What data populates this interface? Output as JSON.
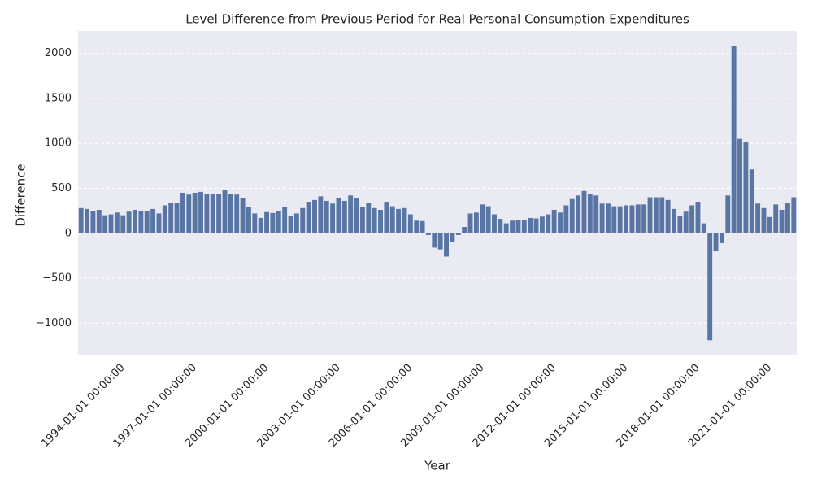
{
  "chart_data": {
    "type": "bar",
    "title": "Level Difference from Previous Period for Real Personal Consumption Expenditures",
    "x_label": "Year",
    "y_label": "Difference",
    "color": "#5875a4",
    "grid": true,
    "ylim": [
      -1350,
      2250
    ],
    "yticks": [
      {
        "value": -1000,
        "label": "−1000"
      },
      {
        "value": -500,
        "label": "−500"
      },
      0,
      500,
      1000,
      1500,
      2000
    ],
    "categories": [
      null,
      null,
      null,
      null,
      null,
      null,
      null,
      "1994-01-01 00:00:00",
      null,
      null,
      null,
      null,
      null,
      null,
      null,
      null,
      null,
      null,
      null,
      "1997-01-01 00:00:00",
      null,
      null,
      null,
      null,
      null,
      null,
      null,
      null,
      null,
      null,
      null,
      "2000-01-01 00:00:00",
      null,
      null,
      null,
      null,
      null,
      null,
      null,
      null,
      null,
      null,
      null,
      "2003-01-01 00:00:00",
      null,
      null,
      null,
      null,
      null,
      null,
      null,
      null,
      null,
      null,
      null,
      "2006-01-01 00:00:00",
      null,
      null,
      null,
      null,
      null,
      null,
      null,
      null,
      null,
      null,
      null,
      "2009-01-01 00:00:00",
      null,
      null,
      null,
      null,
      null,
      null,
      null,
      null,
      null,
      null,
      null,
      "2012-01-01 00:00:00",
      null,
      null,
      null,
      null,
      null,
      null,
      null,
      null,
      null,
      null,
      null,
      "2015-01-01 00:00:00",
      null,
      null,
      null,
      null,
      null,
      null,
      null,
      null,
      null,
      null,
      null,
      "2018-01-01 00:00:00",
      null,
      null,
      null,
      null,
      null,
      null,
      null,
      null,
      null,
      null,
      null,
      "2021-01-01 00:00:00",
      null,
      null,
      null,
      null
    ],
    "values": [
      280,
      270,
      245,
      260,
      200,
      210,
      230,
      200,
      240,
      260,
      245,
      250,
      270,
      220,
      310,
      340,
      340,
      450,
      430,
      450,
      460,
      440,
      440,
      440,
      480,
      440,
      430,
      390,
      290,
      220,
      170,
      235,
      225,
      250,
      290,
      190,
      220,
      280,
      350,
      370,
      410,
      360,
      330,
      390,
      360,
      420,
      390,
      290,
      340,
      280,
      260,
      350,
      300,
      270,
      280,
      210,
      140,
      135,
      -20,
      -160,
      -180,
      -260,
      -100,
      -20,
      70,
      220,
      230,
      320,
      300,
      210,
      160,
      110,
      140,
      150,
      145,
      170,
      165,
      185,
      210,
      260,
      230,
      310,
      380,
      420,
      470,
      440,
      420,
      330,
      330,
      300,
      300,
      310,
      310,
      320,
      320,
      400,
      400,
      400,
      370,
      270,
      190,
      240,
      310,
      350,
      110,
      -1190,
      -200,
      -110,
      420,
      2080,
      1050,
      1010,
      710,
      330,
      280,
      180,
      320,
      260,
      340,
      400
    ]
  }
}
